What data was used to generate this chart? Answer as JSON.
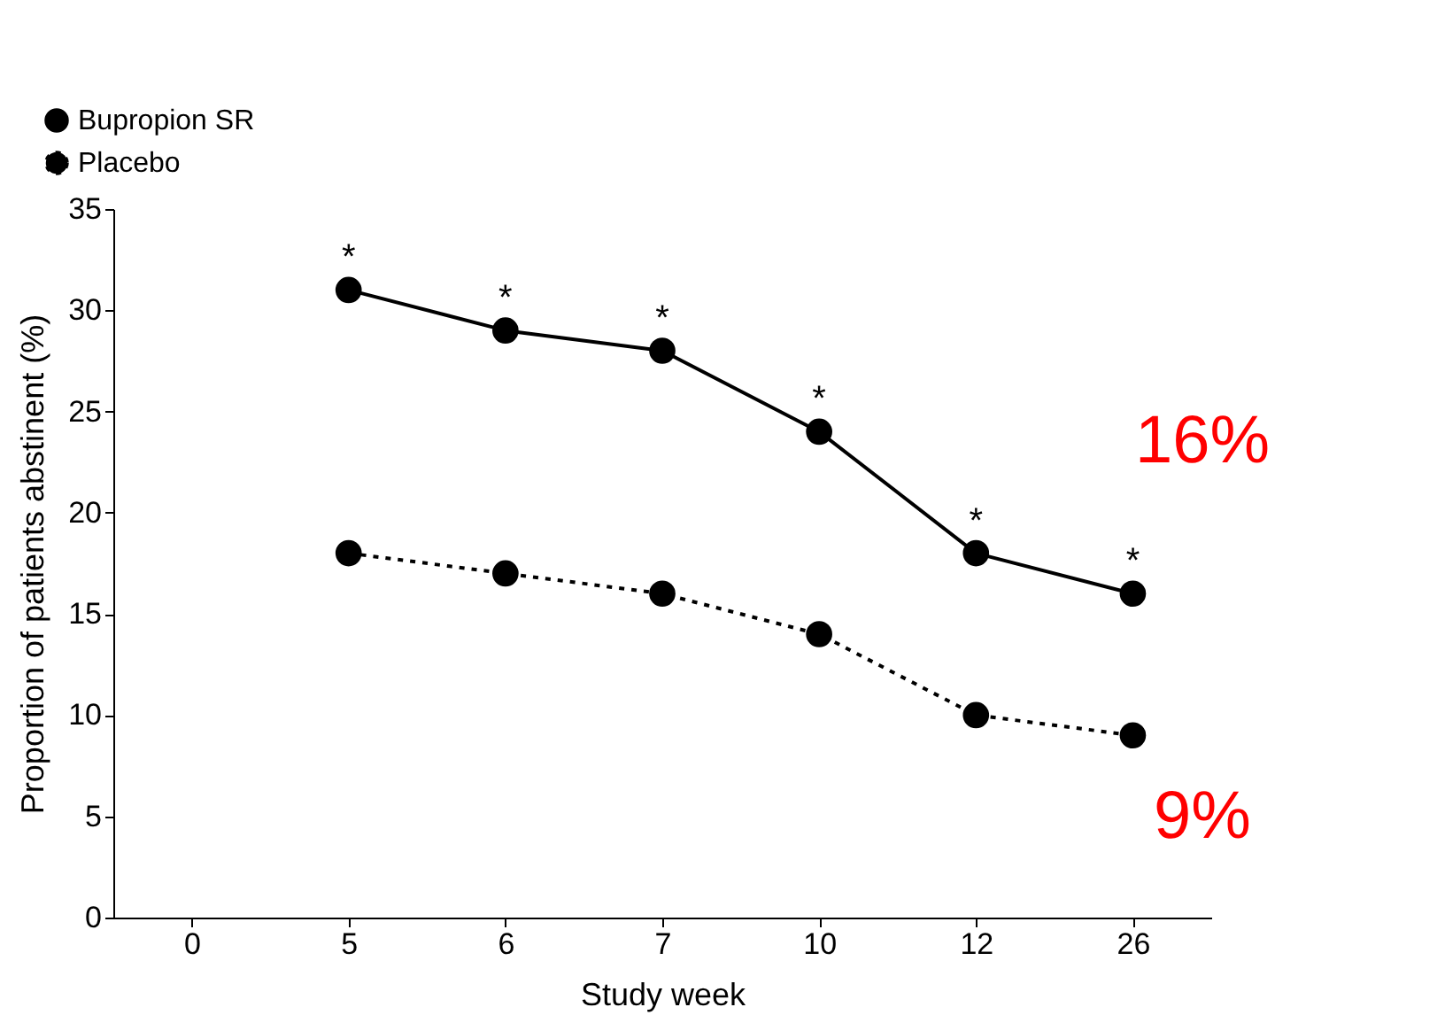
{
  "chart_data": {
    "type": "line",
    "xlabel": "Study week",
    "ylabel": "Proportion of patients abstinent (%)",
    "categories": [
      "0",
      "5",
      "6",
      "7",
      "10",
      "12",
      "26"
    ],
    "series": [
      {
        "name": "Bupropion SR",
        "color": "#000000",
        "line_style": "solid",
        "values": [
          null,
          31,
          29,
          28,
          24,
          18,
          16
        ]
      },
      {
        "name": "Placebo",
        "color": "#000000",
        "line_style": "dotted",
        "values": [
          null,
          18,
          17,
          16,
          14,
          10,
          9
        ]
      }
    ],
    "ylim": [
      0,
      35
    ],
    "yticks": [
      0,
      5,
      10,
      15,
      20,
      25,
      30,
      35
    ],
    "marker": "circle",
    "grid": false,
    "legend": "top left",
    "annotations": [
      {
        "text": "*",
        "x": "5",
        "y": 31
      },
      {
        "text": "*",
        "x": "6",
        "y": 29
      },
      {
        "text": "*",
        "x": "7",
        "y": 28
      },
      {
        "text": "*",
        "x": "10",
        "y": 24
      },
      {
        "text": "*",
        "x": "12",
        "y": 18
      },
      {
        "text": "*",
        "x": "26",
        "y": 16
      },
      "16%",
      "9%"
    ]
  }
}
